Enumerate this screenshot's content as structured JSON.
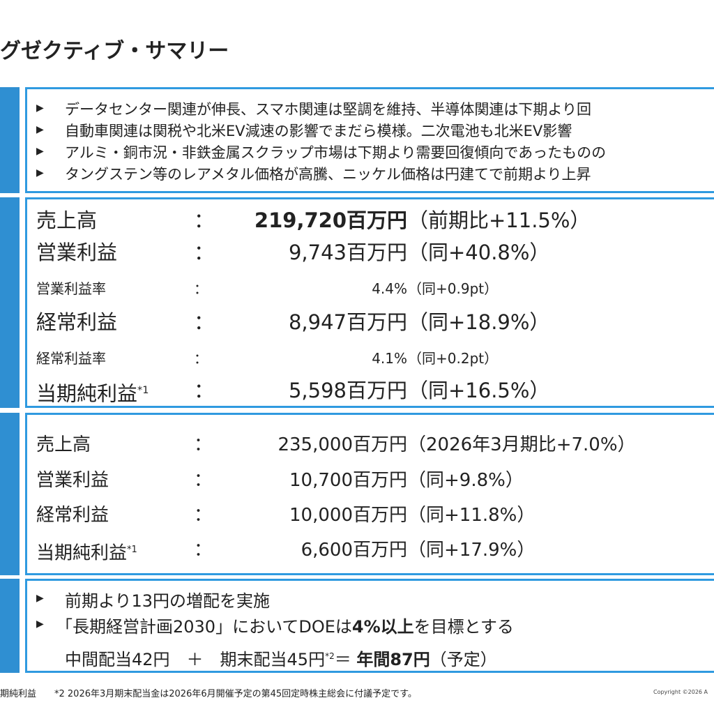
{
  "title": "グゼクティブ・サマリー",
  "highlights": [
    "データセンター関連が伸長、スマホ関連は堅調を維持、半導体関連は下期より回",
    "自動車関連は関税や北米EV減速の影響でまだら模様。二次電池も北米EV影響",
    "アルミ・銅市況・非鉄金属スクラップ市場は下期より需要回復傾向であったものの",
    "タングステン等のレアメタル価格が高騰、ニッケル価格は円建てで前期より上昇"
  ],
  "results": [
    {
      "label": "売上高",
      "colon": "：",
      "value": "219,720百万円",
      "change": "（前期比+11.5%）"
    },
    {
      "label": "営業利益",
      "colon": "：",
      "value": "9,743百万円",
      "change": "（同+40.8%）"
    },
    {
      "label": "営業利益率",
      "colon": "：",
      "value": "4.4%",
      "change": "（同+0.9pt）"
    },
    {
      "label": "経常利益",
      "colon": "：",
      "value": "8,947百万円",
      "change": "（同+18.9%）"
    },
    {
      "label": "経常利益率",
      "colon": "：",
      "value": "4.1%",
      "change": "（同+0.2pt）"
    },
    {
      "label": "当期純利益",
      "note": "*1",
      "colon": "：",
      "value": "5,598百万円",
      "change": "（同+16.5%）"
    }
  ],
  "forecast": [
    {
      "label": "売上高",
      "colon": "：",
      "value": "235,000百万円",
      "change": "（2026年3月期比+7.0%）"
    },
    {
      "label": "営業利益",
      "colon": "：",
      "value": "10,700百万円",
      "change": "（同+9.8%）"
    },
    {
      "label": "経常利益",
      "colon": "：",
      "value": "10,000百万円",
      "change": "（同+11.8%）"
    },
    {
      "label": "当期純利益",
      "note": "*1",
      "colon": "：",
      "value": "6,600百万円",
      "change": "（同+17.9%）"
    }
  ],
  "dividend": {
    "line1": "前期より13円の増配を実施",
    "line2": [
      "「長期経営計画2030」においてDOEは",
      "4%以上",
      "を目標とする"
    ],
    "line3": [
      "中間配当42円　＋　期末配当45円",
      "*2",
      "＝ ",
      "年間87円",
      "（予定）"
    ]
  },
  "footer": {
    "note1": "期純利益",
    "note2": "*2 2026年3月期末配当金は2026年6月開催予定の第45回定時株主総会に付議予定です。",
    "copyright": "Copyright ©2026 A"
  }
}
